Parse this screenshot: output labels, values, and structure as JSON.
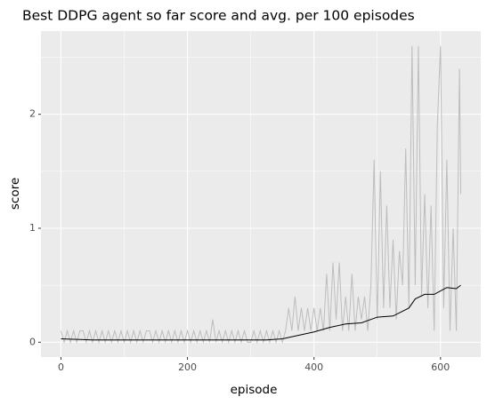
{
  "chart_data": {
    "type": "line",
    "title": "Best DDPG agent so far score and avg. per 100 episodes",
    "x_label": "episode",
    "y_label": "score",
    "xlim": [
      -31.6,
      663.6
    ],
    "xticks": [
      0,
      200,
      400,
      600
    ],
    "x_minor_grid": [
      100,
      300,
      500
    ],
    "ylim": [
      -0.13,
      2.73
    ],
    "yticks": [
      0,
      1,
      2
    ],
    "y_minor_grid": [
      0.5,
      1.5,
      2.5
    ],
    "grid": true,
    "panel_color": "#ebebeb",
    "series": [
      {
        "color": "#bdbdbd",
        "x": [
          0,
          5,
          10,
          15,
          20,
          25,
          30,
          35,
          40,
          45,
          50,
          55,
          60,
          65,
          70,
          75,
          80,
          85,
          90,
          95,
          100,
          105,
          110,
          115,
          120,
          125,
          130,
          135,
          140,
          145,
          150,
          155,
          160,
          165,
          170,
          175,
          180,
          185,
          190,
          195,
          200,
          205,
          210,
          215,
          220,
          225,
          230,
          235,
          240,
          245,
          250,
          255,
          260,
          265,
          270,
          275,
          280,
          285,
          290,
          295,
          300,
          305,
          310,
          315,
          320,
          325,
          330,
          335,
          340,
          345,
          350,
          355,
          360,
          365,
          370,
          375,
          380,
          385,
          390,
          395,
          400,
          405,
          410,
          415,
          420,
          425,
          430,
          435,
          440,
          445,
          450,
          455,
          460,
          465,
          470,
          475,
          480,
          485,
          490,
          495,
          500,
          505,
          510,
          515,
          520,
          525,
          530,
          535,
          540,
          545,
          550,
          555,
          560,
          565,
          570,
          575,
          580,
          585,
          590,
          595,
          600,
          605,
          610,
          615,
          620,
          625,
          630,
          632
        ],
        "values": [
          0.1,
          0,
          0.1,
          0,
          0.1,
          0,
          0.1,
          0.1,
          0,
          0.1,
          0,
          0.1,
          0,
          0.1,
          0,
          0.1,
          0,
          0.1,
          0,
          0.1,
          0,
          0.1,
          0,
          0.1,
          0,
          0.1,
          0,
          0.1,
          0.1,
          0,
          0.1,
          0,
          0.1,
          0,
          0.1,
          0,
          0.1,
          0,
          0.1,
          0,
          0.1,
          0,
          0.1,
          0,
          0.1,
          0,
          0.1,
          0,
          0.2,
          0,
          0.1,
          0,
          0.1,
          0,
          0.1,
          0,
          0.1,
          0,
          0.1,
          0,
          0,
          0.1,
          0,
          0.1,
          0,
          0.1,
          0,
          0.1,
          0,
          0.1,
          0,
          0.1,
          0.3,
          0.1,
          0.4,
          0.1,
          0.3,
          0.1,
          0.3,
          0.1,
          0.3,
          0.1,
          0.3,
          0.1,
          0.6,
          0.1,
          0.7,
          0.2,
          0.7,
          0.1,
          0.4,
          0.1,
          0.6,
          0.1,
          0.4,
          0.2,
          0.4,
          0.1,
          0.5,
          1.6,
          0.2,
          1.5,
          0.3,
          1.2,
          0.3,
          0.9,
          0.2,
          0.8,
          0.5,
          1.7,
          0.3,
          2.6,
          0.5,
          2.6,
          0.4,
          1.3,
          0.3,
          1.2,
          0.1,
          1.9,
          2.6,
          0.3,
          1.6,
          0.1,
          1.0,
          0.1,
          2.4,
          1.3
        ]
      },
      {
        "color": "#000000",
        "x": [
          0,
          25,
          50,
          75,
          100,
          125,
          150,
          175,
          200,
          225,
          250,
          275,
          300,
          325,
          350,
          375,
          400,
          425,
          450,
          475,
          500,
          525,
          550,
          560,
          575,
          590,
          600,
          610,
          625,
          632
        ],
        "values": [
          0.03,
          0.025,
          0.02,
          0.02,
          0.02,
          0.02,
          0.02,
          0.02,
          0.02,
          0.02,
          0.02,
          0.02,
          0.02,
          0.02,
          0.03,
          0.06,
          0.09,
          0.13,
          0.16,
          0.17,
          0.22,
          0.23,
          0.3,
          0.38,
          0.42,
          0.42,
          0.45,
          0.48,
          0.47,
          0.5
        ]
      }
    ]
  }
}
